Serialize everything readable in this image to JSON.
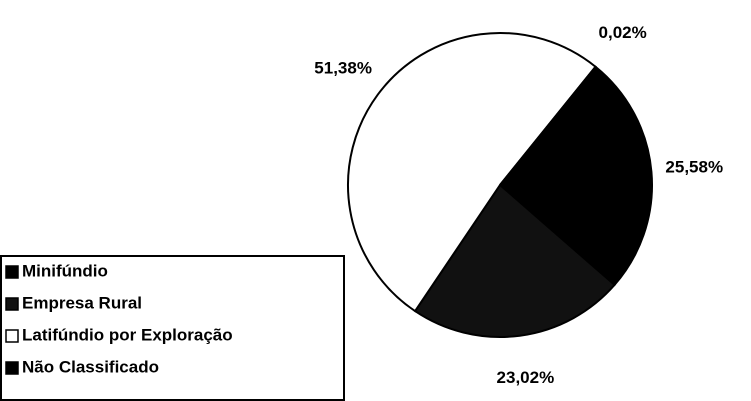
{
  "chart_data": {
    "type": "pie",
    "categories": [
      "Minifúndio",
      "Empresa Rural",
      "Latifúndio por Exploração",
      "Não Classificado"
    ],
    "values": [
      25.58,
      23.02,
      51.38,
      0.02
    ],
    "value_labels": [
      "25,58%",
      "23,02%",
      "51,38%",
      "0,02%"
    ],
    "colors": [
      "#000000",
      "#111111",
      "#ffffff",
      "#000000"
    ],
    "legend": "bottom-left"
  }
}
